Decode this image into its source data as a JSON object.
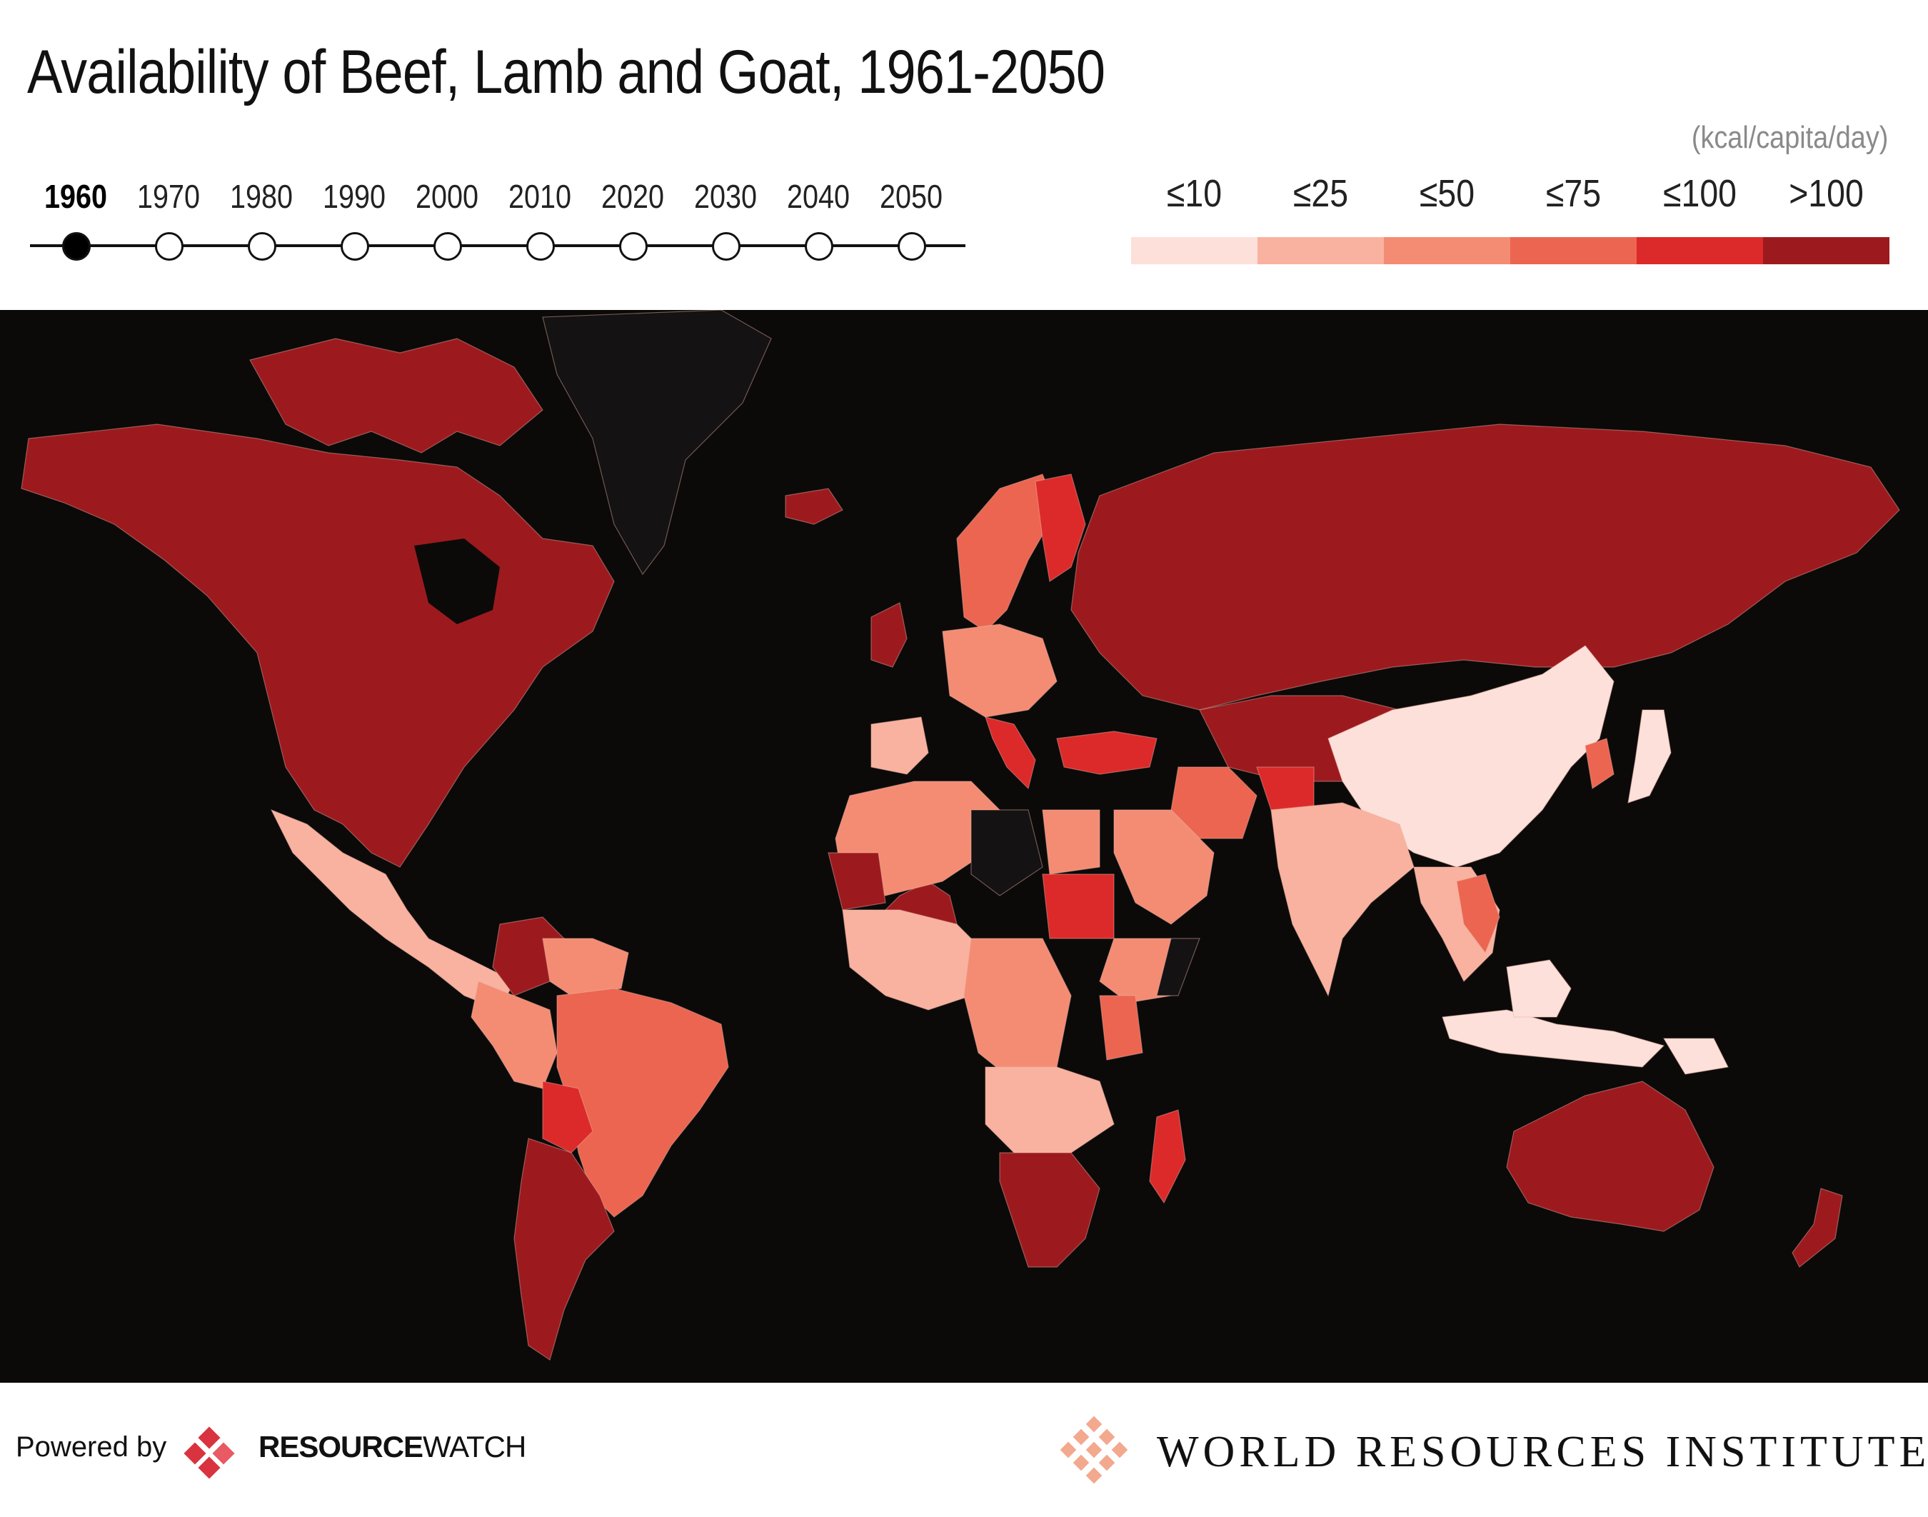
{
  "title": "Availability of Beef, Lamb and Goat, 1961-2050",
  "units": "(kcal/capita/day)",
  "timeline": {
    "years": [
      "1960",
      "1970",
      "1980",
      "1990",
      "2000",
      "2010",
      "2020",
      "2030",
      "2040",
      "2050"
    ],
    "active_index": 0
  },
  "legend": {
    "bins": [
      {
        "label": "≤10",
        "color": "#fde0d9"
      },
      {
        "label": "≤25",
        "color": "#f9b29f"
      },
      {
        "label": "≤50",
        "color": "#f48c73"
      },
      {
        "label": "≤75",
        "color": "#ec6550"
      },
      {
        "label": "≤100",
        "color": "#dc2a2a"
      },
      {
        "label": ">100",
        "color": "#9c1a1e"
      }
    ]
  },
  "map": {
    "background": "#0b0a09",
    "no_data_color": "#141212"
  },
  "footer": {
    "powered_by": "Powered by",
    "rw_bold": "RESOURCE",
    "rw_light": "WATCH",
    "wri": "WORLD RESOURCES INSTITUTE"
  }
}
